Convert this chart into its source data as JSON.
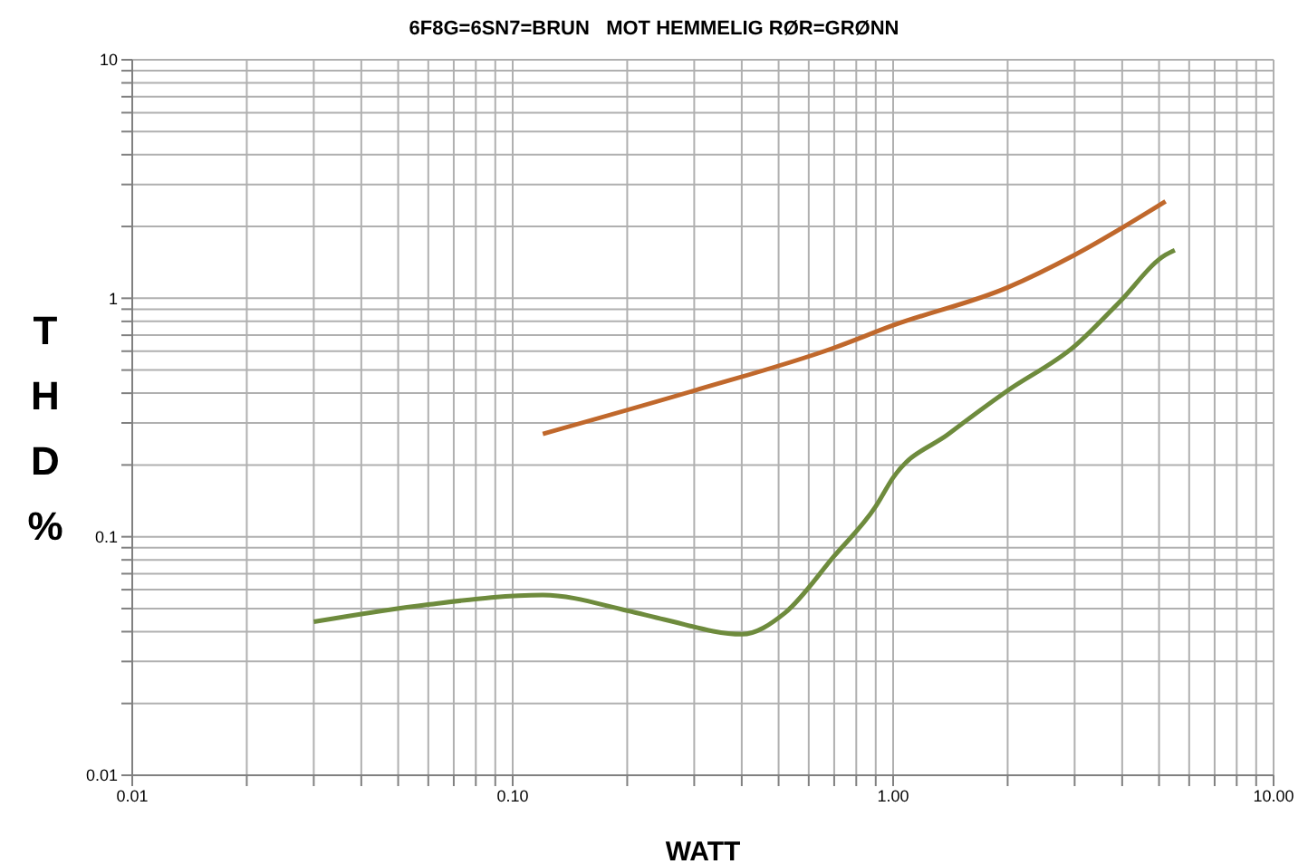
{
  "chart_data": {
    "type": "line",
    "title": "6F8G=6SN7=BRUN   MOT HEMMELIG RØR=GRØNN",
    "xlabel": "WATT",
    "ylabel": "THD%",
    "log": "xy",
    "grid": true,
    "xlim": [
      0.01,
      10
    ],
    "ylim": [
      0.01,
      10
    ],
    "xticks": [
      {
        "value": 0.01,
        "label": "0.01"
      },
      {
        "value": 0.02,
        "label": null
      },
      {
        "value": 0.03,
        "label": null
      },
      {
        "value": 0.04,
        "label": null
      },
      {
        "value": 0.05,
        "label": null
      },
      {
        "value": 0.06,
        "label": null
      },
      {
        "value": 0.07,
        "label": null
      },
      {
        "value": 0.08,
        "label": null
      },
      {
        "value": 0.09,
        "label": null
      },
      {
        "value": 0.1,
        "label": "0.10"
      },
      {
        "value": 0.2,
        "label": null
      },
      {
        "value": 0.3,
        "label": null
      },
      {
        "value": 0.4,
        "label": null
      },
      {
        "value": 0.5,
        "label": null
      },
      {
        "value": 0.6,
        "label": null
      },
      {
        "value": 0.7,
        "label": null
      },
      {
        "value": 0.8,
        "label": null
      },
      {
        "value": 0.9,
        "label": null
      },
      {
        "value": 1,
        "label": "1.00"
      },
      {
        "value": 2,
        "label": null
      },
      {
        "value": 3,
        "label": null
      },
      {
        "value": 4,
        "label": null
      },
      {
        "value": 5,
        "label": null
      },
      {
        "value": 6,
        "label": null
      },
      {
        "value": 7,
        "label": null
      },
      {
        "value": 8,
        "label": null
      },
      {
        "value": 9,
        "label": null
      },
      {
        "value": 10,
        "label": "10.00"
      }
    ],
    "yticks": [
      0.01,
      {
        "value": 0.02,
        "label": null
      },
      {
        "value": 0.03,
        "label": null
      },
      {
        "value": 0.04,
        "label": null
      },
      {
        "value": 0.05,
        "label": null
      },
      {
        "value": 0.06,
        "label": null
      },
      {
        "value": 0.07,
        "label": null
      },
      {
        "value": 0.08,
        "label": null
      },
      {
        "value": 0.09,
        "label": null
      },
      0.1,
      {
        "value": 0.2,
        "label": null
      },
      {
        "value": 0.3,
        "label": null
      },
      {
        "value": 0.4,
        "label": null
      },
      {
        "value": 0.5,
        "label": null
      },
      {
        "value": 0.6,
        "label": null
      },
      {
        "value": 0.7,
        "label": null
      },
      {
        "value": 0.8,
        "label": null
      },
      {
        "value": 0.9,
        "label": null
      },
      1,
      {
        "value": 2,
        "label": null
      },
      {
        "value": 3,
        "label": null
      },
      {
        "value": 4,
        "label": null
      },
      {
        "value": 5,
        "label": null
      },
      {
        "value": 6,
        "label": null
      },
      {
        "value": 7,
        "label": null
      },
      {
        "value": 8,
        "label": null
      },
      {
        "value": 9,
        "label": null
      },
      10
    ],
    "series": [
      {
        "color": "#c0682c",
        "x": [
          0.12,
          0.3,
          0.7,
          1.0,
          2.0,
          3.0,
          5.2
        ],
        "values": [
          0.27,
          0.41,
          0.62,
          0.77,
          1.11,
          1.52,
          2.55
        ]
      },
      {
        "color": "#6e8b3d",
        "x": [
          0.03,
          0.06,
          0.12,
          0.2,
          0.25,
          0.4,
          0.52,
          0.7,
          0.9,
          1.0,
          1.4,
          2.0,
          3.0,
          3.9,
          5.2,
          5.5
        ],
        "values": [
          0.044,
          0.052,
          0.057,
          0.049,
          0.045,
          0.039,
          0.048,
          0.083,
          0.134,
          0.177,
          0.27,
          0.41,
          0.63,
          0.95,
          1.52,
          1.59
        ]
      }
    ]
  }
}
